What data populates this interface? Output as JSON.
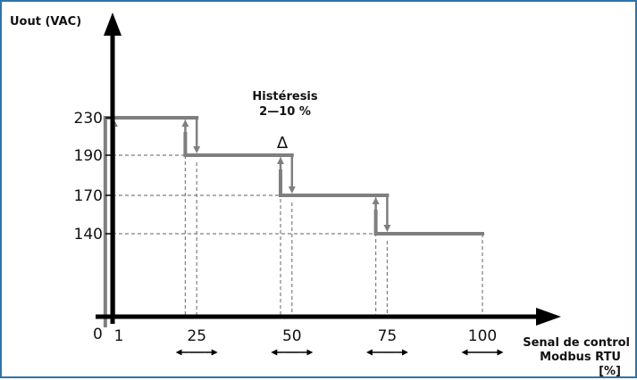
{
  "chart_data": {
    "type": "line",
    "title": "",
    "ylabel": "Uout (VAC)",
    "xlabel_lines": [
      "Senal de control",
      "Modbus RTU",
      "[%]"
    ],
    "origin_label": "0",
    "x_ticks": [
      "1",
      "25",
      "50",
      "75",
      "100"
    ],
    "y_ticks": [
      "230",
      "190",
      "170",
      "140"
    ],
    "annotation": {
      "title": "Histéresis",
      "range": "2—10 %",
      "delta_symbol": "Δ"
    },
    "steps": [
      {
        "x_start": 1,
        "x_end": 25,
        "y": 230
      },
      {
        "x_start": 25,
        "x_end": 50,
        "y": 190
      },
      {
        "x_start": 50,
        "x_end": 75,
        "y": 170
      },
      {
        "x_start": 75,
        "x_end": 100,
        "y": 140
      }
    ],
    "up_transitions": [
      1,
      22,
      47,
      72
    ],
    "down_transitions": [
      25,
      50,
      75
    ],
    "series_color": "#7f7f7f",
    "axis_color": "#000000",
    "frame_color": "#2e73a8"
  }
}
